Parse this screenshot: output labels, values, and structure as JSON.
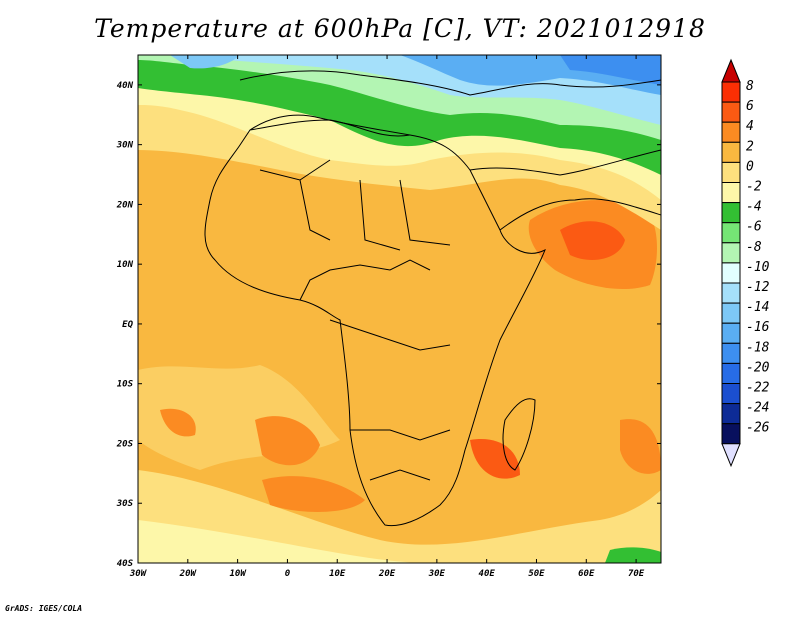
{
  "title": "Temperature at 600hPa [C], VT: 2021012918",
  "credit": "GrADS: IGES/COLA",
  "map": {
    "lon_range": [
      -30,
      75
    ],
    "lat_range": [
      -40,
      45
    ],
    "lon_ticks": [
      "30W",
      "20W",
      "10W",
      "0",
      "10E",
      "20E",
      "30E",
      "40E",
      "50E",
      "60E",
      "70E"
    ],
    "lat_ticks": [
      "40N",
      "30N",
      "20N",
      "10N",
      "EQ",
      "10S",
      "20S",
      "30S",
      "40S"
    ],
    "fill_description_colors": {
      "background": "#f9b840",
      "cold_north": "#3e9ef0"
    }
  },
  "colorbar": {
    "labels": [
      "8",
      "6",
      "4",
      "2",
      "0",
      "-2",
      "-4",
      "-6",
      "-8",
      "-10",
      "-12",
      "-14",
      "-16",
      "-18",
      "-20",
      "-22",
      "-24",
      "-26"
    ],
    "colors": [
      "#fb2f04",
      "#fb5a13",
      "#fb8b22",
      "#f9b840",
      "#fde07e",
      "#fdf7a9",
      "#33bf33",
      "#75e575",
      "#b3f5b3",
      "#e2ffff",
      "#a5e0fa",
      "#7dc8f6",
      "#5aaef3",
      "#3d8ff0",
      "#276ce6",
      "#1b4fd0",
      "#0d2b96",
      "#08105e"
    ],
    "top_arrow_color": "#c70000",
    "bottom_arrow_color": "#e0e0ff"
  }
}
